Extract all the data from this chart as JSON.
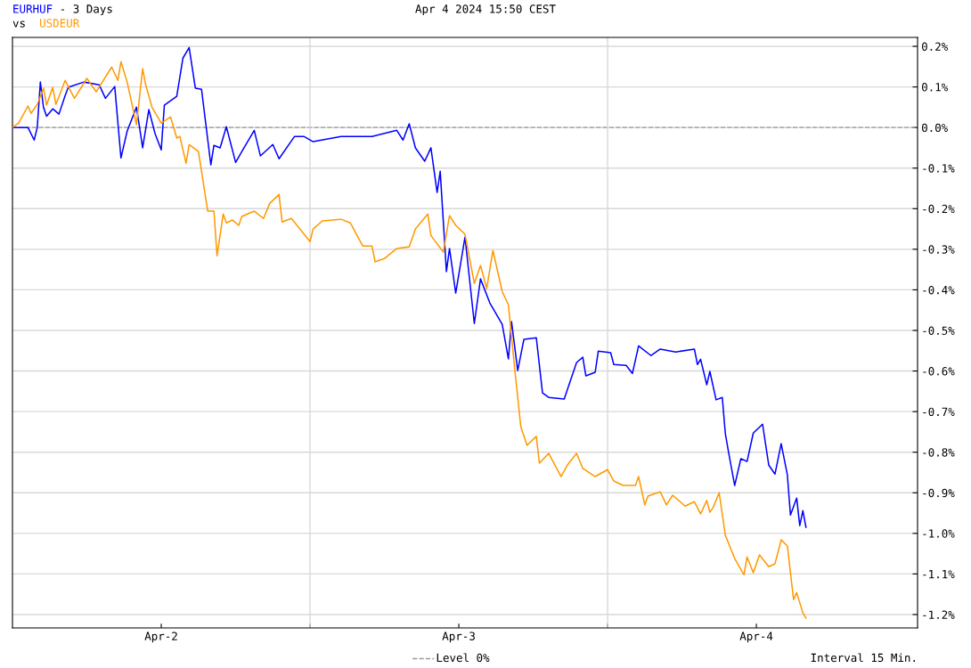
{
  "chart_data": {
    "type": "line",
    "title": "- 3 Days",
    "subtitle": "Apr 4 2024 15:50 CEST",
    "annotations": [
      "vs",
      "Interval 15 Min."
    ],
    "legend": "bottom",
    "grid": "y",
    "line_style": "solid",
    "marker": "none",
    "xlim": [
      "2024-04-02T00:00",
      "2024-04-05T01:00"
    ],
    "ylim": [
      -1.233,
      0.222
    ],
    "xticks": [
      {
        "value": "2024-04-02T12:00",
        "label": "Apr-2"
      },
      {
        "value": "2024-04-03T00:00",
        "label": null
      },
      {
        "value": "2024-04-03T12:00",
        "label": "Apr-3"
      },
      {
        "value": "2024-04-04T00:00",
        "label": null
      },
      {
        "value": "2024-04-04T12:00",
        "label": "Apr-4"
      }
    ],
    "yticks": [
      {
        "value": 0.2,
        "label": "0.2%"
      },
      {
        "value": 0.1,
        "label": "0.1%"
      },
      {
        "value": 0,
        "label": "0.0%"
      },
      {
        "value": -0.1,
        "label": "-0.1%"
      },
      {
        "value": -0.2,
        "label": "-0.2%"
      },
      {
        "value": -0.3,
        "label": "-0.3%"
      },
      {
        "value": -0.4,
        "label": "-0.4%"
      },
      {
        "value": -0.5,
        "label": "-0.5%"
      },
      {
        "value": -0.6,
        "label": "-0.6%"
      },
      {
        "value": -0.7,
        "label": "-0.7%"
      },
      {
        "value": -0.8,
        "label": "-0.8%"
      },
      {
        "value": -0.9,
        "label": "-0.9%"
      },
      {
        "value": -1.0,
        "label": "-1.0%"
      },
      {
        "value": -1.1,
        "label": "-1.1%"
      },
      {
        "value": -1.2,
        "label": "-1.2%"
      }
    ],
    "ref_lines": [
      {
        "axis": "y",
        "value": 0,
        "label": "Level 0%",
        "color": "#999999",
        "line_style": "dashed"
      },
      {
        "axis": "x",
        "value": "2024-04-03T00:00",
        "label": null,
        "color": "#d8d8d8",
        "line_style": "solid"
      },
      {
        "axis": "x",
        "value": "2024-04-04T00:00",
        "label": null,
        "color": "#d8d8d8",
        "line_style": "solid"
      }
    ],
    "series": [
      {
        "name": "EURHUF",
        "color": "#0000ff",
        "x": [
          "2024-04-02T00:00",
          "2024-04-02T01:15",
          "2024-04-02T01:45",
          "2024-04-02T02:00",
          "2024-04-02T02:15",
          "2024-04-02T02:30",
          "2024-04-02T02:45",
          "2024-04-02T03:15",
          "2024-04-02T03:45",
          "2024-04-02T04:15",
          "2024-04-02T04:30",
          "2024-04-02T05:45",
          "2024-04-02T07:00",
          "2024-04-02T07:30",
          "2024-04-02T08:15",
          "2024-04-02T08:45",
          "2024-04-02T09:15",
          "2024-04-02T10:00",
          "2024-04-02T10:30",
          "2024-04-02T11:00",
          "2024-04-02T11:30",
          "2024-04-02T12:00",
          "2024-04-02T12:15",
          "2024-04-02T13:15",
          "2024-04-02T13:45",
          "2024-04-02T14:15",
          "2024-04-02T14:45",
          "2024-04-02T15:15",
          "2024-04-02T16:00",
          "2024-04-02T16:15",
          "2024-04-02T16:45",
          "2024-04-02T17:15",
          "2024-04-02T18:00",
          "2024-04-02T18:30",
          "2024-04-02T19:30",
          "2024-04-02T20:00",
          "2024-04-02T21:00",
          "2024-04-02T21:30",
          "2024-04-02T22:45",
          "2024-04-02T23:30",
          "2024-04-03T00:15",
          "2024-04-03T02:30",
          "2024-04-03T05:00",
          "2024-04-03T07:00",
          "2024-04-03T07:30",
          "2024-04-03T08:00",
          "2024-04-03T08:30",
          "2024-04-03T09:15",
          "2024-04-03T09:45",
          "2024-04-03T10:15",
          "2024-04-03T10:30",
          "2024-04-03T11:00",
          "2024-04-03T11:15",
          "2024-04-03T11:45",
          "2024-04-03T12:30",
          "2024-04-03T13:15",
          "2024-04-03T13:45",
          "2024-04-03T14:30",
          "2024-04-03T15:30",
          "2024-04-03T16:00",
          "2024-04-03T16:15",
          "2024-04-03T16:45",
          "2024-04-03T17:15",
          "2024-04-03T18:15",
          "2024-04-03T18:45",
          "2024-04-03T19:15",
          "2024-04-03T20:30",
          "2024-04-03T21:30",
          "2024-04-03T22:00",
          "2024-04-03T22:15",
          "2024-04-03T23:00",
          "2024-04-03T23:15",
          "2024-04-04T00:15",
          "2024-04-04T00:30",
          "2024-04-04T01:30",
          "2024-04-04T02:00",
          "2024-04-04T02:30",
          "2024-04-04T03:30",
          "2024-04-04T04:15",
          "2024-04-04T05:30",
          "2024-04-04T07:00",
          "2024-04-04T07:15",
          "2024-04-04T07:30",
          "2024-04-04T08:00",
          "2024-04-04T08:15",
          "2024-04-04T08:45",
          "2024-04-04T09:15",
          "2024-04-04T09:30",
          "2024-04-04T09:45",
          "2024-04-04T10:15",
          "2024-04-04T10:45",
          "2024-04-04T11:15",
          "2024-04-04T11:45",
          "2024-04-04T12:30",
          "2024-04-04T13:00",
          "2024-04-04T13:30",
          "2024-04-04T14:00",
          "2024-04-04T14:30",
          "2024-04-04T14:45",
          "2024-04-04T15:15",
          "2024-04-04T15:30",
          "2024-04-04T15:45",
          "2024-04-04T16:00"
        ],
        "values": [
          0,
          0,
          -0.031,
          0,
          0.112,
          0.05,
          0.028,
          0.046,
          0.033,
          0.079,
          0.099,
          0.112,
          0.105,
          0.072,
          0.101,
          -0.075,
          -0.009,
          0.05,
          -0.05,
          0.044,
          -0.015,
          -0.055,
          0.055,
          0.077,
          0.171,
          0.197,
          0.097,
          0.094,
          -0.092,
          -0.044,
          -0.05,
          0.002,
          -0.086,
          -0.059,
          -0.007,
          -0.07,
          -0.042,
          -0.077,
          -0.022,
          -0.022,
          -0.035,
          -0.022,
          -0.022,
          -0.007,
          -0.031,
          0.009,
          -0.05,
          -0.083,
          -0.05,
          -0.16,
          -0.108,
          -0.355,
          -0.298,
          -0.408,
          -0.27,
          -0.483,
          -0.373,
          -0.432,
          -0.485,
          -0.57,
          -0.478,
          -0.599,
          -0.522,
          -0.518,
          -0.654,
          -0.665,
          -0.669,
          -0.579,
          -0.566,
          -0.612,
          -0.603,
          -0.551,
          -0.555,
          -0.584,
          -0.586,
          -0.606,
          -0.538,
          -0.562,
          -0.546,
          -0.553,
          -0.546,
          -0.584,
          -0.571,
          -0.634,
          -0.601,
          -0.671,
          -0.665,
          -0.755,
          -0.799,
          -0.882,
          -0.816,
          -0.823,
          -0.753,
          -0.731,
          -0.832,
          -0.854,
          -0.779,
          -0.856,
          -0.955,
          -0.913,
          -0.981,
          -0.944,
          -0.985
        ]
      },
      {
        "name": "USDEUR",
        "color": "#ff9900",
        "x": [
          "2024-04-02T00:00",
          "2024-04-02T00:30",
          "2024-04-02T01:15",
          "2024-04-02T01:30",
          "2024-04-02T02:00",
          "2024-04-02T02:30",
          "2024-04-02T02:45",
          "2024-04-02T03:15",
          "2024-04-02T03:30",
          "2024-04-02T04:15",
          "2024-04-02T05:00",
          "2024-04-02T06:00",
          "2024-04-02T06:45",
          "2024-04-02T08:00",
          "2024-04-02T08:30",
          "2024-04-02T08:45",
          "2024-04-02T09:15",
          "2024-04-02T10:00",
          "2024-04-02T10:30",
          "2024-04-02T10:45",
          "2024-04-02T11:15",
          "2024-04-02T12:00",
          "2024-04-02T12:45",
          "2024-04-02T13:15",
          "2024-04-02T13:30",
          "2024-04-02T14:00",
          "2024-04-02T14:15",
          "2024-04-02T15:00",
          "2024-04-02T15:45",
          "2024-04-02T16:15",
          "2024-04-02T16:30",
          "2024-04-02T17:00",
          "2024-04-02T17:15",
          "2024-04-02T17:45",
          "2024-04-02T18:15",
          "2024-04-02T18:30",
          "2024-04-02T19:30",
          "2024-04-02T20:15",
          "2024-04-02T20:45",
          "2024-04-02T21:30",
          "2024-04-02T21:45",
          "2024-04-02T22:30",
          "2024-04-03T00:00",
          "2024-04-03T00:15",
          "2024-04-03T01:00",
          "2024-04-03T02:30",
          "2024-04-03T03:15",
          "2024-04-03T04:15",
          "2024-04-03T05:00",
          "2024-04-03T05:15",
          "2024-04-03T06:00",
          "2024-04-03T07:00",
          "2024-04-03T08:00",
          "2024-04-03T08:30",
          "2024-04-03T09:30",
          "2024-04-03T09:45",
          "2024-04-03T10:45",
          "2024-04-03T11:15",
          "2024-04-03T11:45",
          "2024-04-03T12:30",
          "2024-04-03T13:15",
          "2024-04-03T13:45",
          "2024-04-03T14:15",
          "2024-04-03T14:45",
          "2024-04-03T15:30",
          "2024-04-03T16:00",
          "2024-04-03T16:30",
          "2024-04-03T17:00",
          "2024-04-03T17:30",
          "2024-04-03T18:15",
          "2024-04-03T18:30",
          "2024-04-03T19:15",
          "2024-04-03T20:15",
          "2024-04-03T20:45",
          "2024-04-03T21:30",
          "2024-04-03T22:00",
          "2024-04-03T23:00",
          "2024-04-04T00:00",
          "2024-04-04T00:30",
          "2024-04-04T01:15",
          "2024-04-04T02:15",
          "2024-04-04T02:30",
          "2024-04-04T03:00",
          "2024-04-04T03:15",
          "2024-04-04T04:15",
          "2024-04-04T04:45",
          "2024-04-04T05:15",
          "2024-04-04T06:15",
          "2024-04-04T07:00",
          "2024-04-04T07:30",
          "2024-04-04T08:00",
          "2024-04-04T08:15",
          "2024-04-04T08:30",
          "2024-04-04T09:00",
          "2024-04-04T09:30",
          "2024-04-04T10:15",
          "2024-04-04T11:00",
          "2024-04-04T11:15",
          "2024-04-04T11:45",
          "2024-04-04T12:15",
          "2024-04-04T13:00",
          "2024-04-04T13:30",
          "2024-04-04T14:00",
          "2024-04-04T14:30",
          "2024-04-04T15:00",
          "2024-04-04T15:15",
          "2024-04-04T15:45",
          "2024-04-04T16:00"
        ],
        "values": [
          0,
          0.011,
          0.053,
          0.035,
          0.057,
          0.097,
          0.055,
          0.099,
          0.057,
          0.116,
          0.072,
          0.121,
          0.088,
          0.149,
          0.116,
          0.162,
          0.112,
          0.007,
          0.145,
          0.105,
          0.05,
          0.011,
          0.026,
          -0.026,
          -0.022,
          -0.088,
          -0.042,
          -0.059,
          -0.206,
          -0.206,
          -0.316,
          -0.213,
          -0.235,
          -0.228,
          -0.241,
          -0.219,
          -0.206,
          -0.224,
          -0.187,
          -0.165,
          -0.233,
          -0.224,
          -0.281,
          -0.25,
          -0.23,
          -0.226,
          -0.235,
          -0.292,
          -0.292,
          -0.331,
          -0.323,
          -0.298,
          -0.294,
          -0.25,
          -0.213,
          -0.266,
          -0.307,
          -0.217,
          -0.241,
          -0.263,
          -0.384,
          -0.34,
          -0.397,
          -0.303,
          -0.404,
          -0.437,
          -0.592,
          -0.737,
          -0.783,
          -0.761,
          -0.827,
          -0.803,
          -0.86,
          -0.832,
          -0.803,
          -0.84,
          -0.86,
          -0.843,
          -0.871,
          -0.882,
          -0.882,
          -0.86,
          -0.93,
          -0.908,
          -0.898,
          -0.93,
          -0.906,
          -0.933,
          -0.922,
          -0.952,
          -0.919,
          -0.948,
          -0.937,
          -0.9,
          -1.005,
          -1.062,
          -1.102,
          -1.058,
          -1.097,
          -1.053,
          -1.082,
          -1.075,
          -1.016,
          -1.031,
          -1.163,
          -1.146,
          -1.196,
          -1.209
        ]
      }
    ]
  }
}
